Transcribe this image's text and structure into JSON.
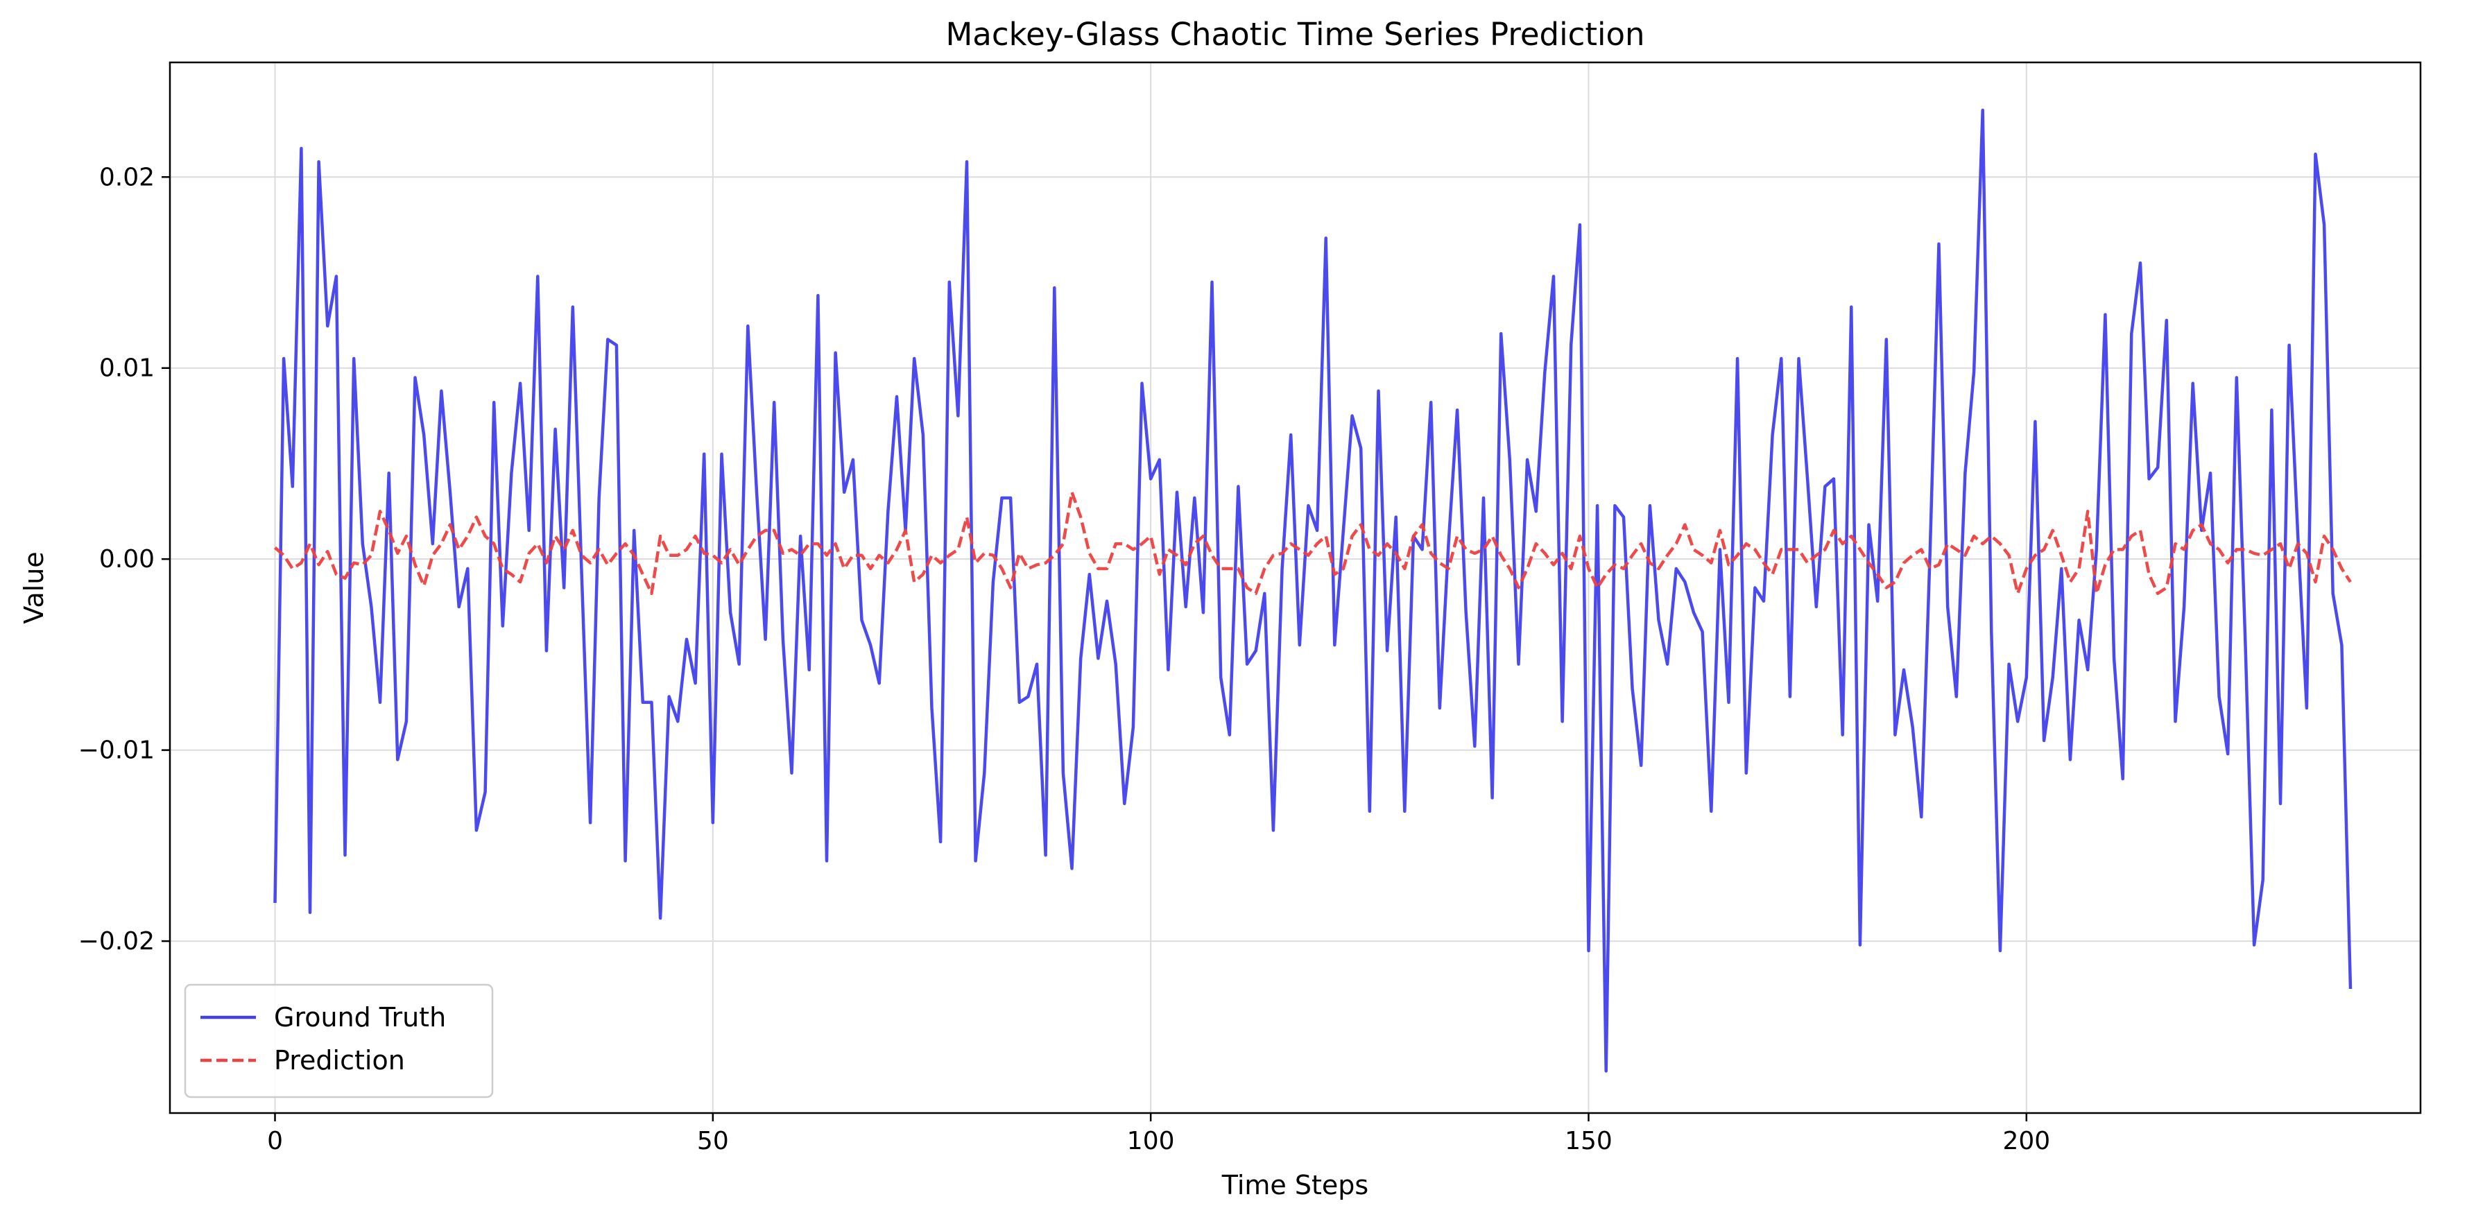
{
  "chart_data": {
    "type": "line",
    "title": "Mackey-Glass Chaotic Time Series Prediction",
    "xlabel": "Time Steps",
    "ylabel": "Value",
    "xlim": [
      -12,
      245
    ],
    "ylim": [
      -0.029,
      0.026
    ],
    "xticks": [
      0,
      50,
      100,
      150,
      200
    ],
    "xtick_labels": [
      "0",
      "50",
      "100",
      "150",
      "200"
    ],
    "yticks": [
      -0.02,
      -0.01,
      0.0,
      0.01,
      0.02
    ],
    "ytick_labels": [
      "−0.02",
      "−0.01",
      "0.00",
      "0.01",
      "0.02"
    ],
    "grid": true,
    "legend_position": "lower-left",
    "series": [
      {
        "name": "Ground Truth",
        "color": "#4040ee",
        "style": "solid",
        "values": [
          -0.018,
          0.0105,
          0.0038,
          0.0215,
          -0.0185,
          0.0208,
          0.0122,
          0.0148,
          -0.0155,
          0.0105,
          0.0008,
          -0.0025,
          -0.0075,
          0.0045,
          -0.0105,
          -0.0085,
          0.0095,
          0.0065,
          0.0008,
          0.0088,
          0.0035,
          -0.0025,
          -0.0005,
          -0.0142,
          -0.0122,
          0.0082,
          -0.0035,
          0.0045,
          0.0092,
          0.0015,
          0.0148,
          -0.0048,
          0.0068,
          -0.0015,
          0.0132,
          -0.0005,
          -0.0138,
          0.0032,
          0.0115,
          0.0112,
          -0.0158,
          0.0015,
          -0.0075,
          -0.0075,
          -0.0188,
          -0.0072,
          -0.0085,
          -0.0042,
          -0.0065,
          0.0055,
          -0.0138,
          0.0055,
          -0.0028,
          -0.0055,
          0.0122,
          0.0035,
          -0.0042,
          0.0082,
          -0.0042,
          -0.0112,
          0.0012,
          -0.0058,
          0.0138,
          -0.0158,
          0.0108,
          0.0035,
          0.0052,
          -0.0032,
          -0.0045,
          -0.0065,
          0.0025,
          0.0085,
          0.0015,
          0.0105,
          0.0065,
          -0.0078,
          -0.0148,
          0.0145,
          0.0075,
          0.0208,
          -0.0158,
          -0.0112,
          -0.0012,
          0.0032,
          0.0032,
          -0.0075,
          -0.0072,
          -0.0055,
          -0.0155,
          0.0142,
          -0.0112,
          -0.0162,
          -0.0052,
          -0.0008,
          -0.0052,
          -0.0022,
          -0.0055,
          -0.0128,
          -0.0088,
          0.0092,
          0.0042,
          0.0052,
          -0.0058,
          0.0035,
          -0.0025,
          0.0032,
          -0.0028,
          0.0145,
          -0.0062,
          -0.0092,
          0.0038,
          -0.0055,
          -0.0048,
          -0.0018,
          -0.0142,
          -0.0005,
          0.0065,
          -0.0045,
          0.0028,
          0.0015,
          0.0168,
          -0.0045,
          0.0015,
          0.0075,
          0.0058,
          -0.0132,
          0.0088,
          -0.0048,
          0.0022,
          -0.0132,
          0.0012,
          0.0005,
          0.0082,
          -0.0078,
          0.0008,
          0.0078,
          -0.0028,
          -0.0098,
          0.0032,
          -0.0125,
          0.0118,
          0.0052,
          -0.0055,
          0.0052,
          0.0025,
          0.0098,
          0.0148,
          -0.0085,
          0.0112,
          0.0175,
          -0.0205,
          0.0028,
          -0.0268,
          0.0028,
          0.0022,
          -0.0068,
          -0.0108,
          0.0028,
          -0.0032,
          -0.0055,
          -0.0005,
          -0.0012,
          -0.0028,
          -0.0038,
          -0.0132,
          0.0005,
          -0.0075,
          0.0105,
          -0.0112,
          -0.0015,
          -0.0022,
          0.0065,
          0.0105,
          -0.0072,
          0.0105,
          0.0042,
          -0.0025,
          0.0038,
          0.0042,
          -0.0092,
          0.0132,
          -0.0202,
          0.0018,
          -0.0022,
          0.0115,
          -0.0092,
          -0.0058,
          -0.0088,
          -0.0135,
          0.0005,
          0.0165,
          -0.0025,
          -0.0072,
          0.0045,
          0.0098,
          0.0235,
          -0.0038,
          -0.0205,
          -0.0055,
          -0.0085,
          -0.0062,
          0.0072,
          -0.0095,
          -0.0062,
          -0.0005,
          -0.0105,
          -0.0032,
          -0.0058,
          0.0005,
          0.0128,
          -0.0052,
          -0.0115,
          0.0118,
          0.0155,
          0.0042,
          0.0048,
          0.0125,
          -0.0085,
          -0.0025,
          0.0092,
          0.0015,
          0.0045,
          -0.0072,
          -0.0102,
          0.0095,
          -0.0045,
          -0.0202,
          -0.0168,
          0.0078,
          -0.0128,
          0.0112,
          0.0012,
          -0.0078,
          0.0212,
          0.0175,
          -0.0018,
          -0.0045,
          -0.0225
        ]
      },
      {
        "name": "Prediction",
        "color": "#ee4040",
        "style": "dashed",
        "values": [
          0.0006,
          0.0002,
          -0.0005,
          -0.0002,
          0.0008,
          -0.0003,
          0.0004,
          -0.0008,
          -0.001,
          -0.0002,
          -0.0003,
          0.0002,
          0.0025,
          0.0015,
          0.0003,
          0.0012,
          -0.0003,
          -0.0014,
          0.0002,
          0.0008,
          0.0018,
          0.0005,
          0.0012,
          0.0022,
          0.0012,
          0.0008,
          -0.0005,
          -0.0008,
          -0.0012,
          0.0003,
          0.0008,
          -0.0002,
          0.0012,
          0.0005,
          0.0015,
          0.0002,
          -0.0002,
          0.0005,
          -0.0003,
          0.0003,
          0.0008,
          0.0002,
          -0.0008,
          -0.0018,
          0.0012,
          0.0002,
          0.0002,
          0.0005,
          0.0012,
          0.0003,
          0.0002,
          -0.0002,
          0.0005,
          -0.0003,
          0.0005,
          0.0012,
          0.0015,
          0.0015,
          0.0003,
          0.0005,
          0.0002,
          0.0008,
          0.0008,
          0.0002,
          0.0008,
          -0.0005,
          0.0002,
          0.0002,
          -0.0005,
          0.0002,
          -0.0002,
          0.0005,
          0.0015,
          -0.0012,
          -0.0008,
          0.0002,
          -0.0002,
          0.0002,
          0.0005,
          0.0022,
          -0.0002,
          0.0003,
          0.0002,
          -0.0005,
          -0.0015,
          0.0003,
          -0.0005,
          -0.0003,
          -0.0002,
          0.0002,
          0.0008,
          0.0035,
          0.0022,
          0.0003,
          -0.0005,
          -0.0005,
          0.0008,
          0.0008,
          0.0005,
          0.0008,
          0.0012,
          -0.0008,
          0.0005,
          0.0002,
          -0.0003,
          0.0008,
          0.0012,
          0.0002,
          -0.0005,
          -0.0005,
          -0.0005,
          -0.0015,
          -0.0018,
          -0.0005,
          0.0002,
          0.0003,
          0.0008,
          0.0005,
          0.0002,
          0.0008,
          0.0012,
          -0.0008,
          -0.0005,
          0.0012,
          0.0018,
          0.0005,
          0.0002,
          0.0008,
          0.0003,
          -0.0005,
          0.0012,
          0.0018,
          0.0003,
          -0.0002,
          -0.0005,
          0.0012,
          0.0005,
          0.0003,
          0.0005,
          0.0012,
          0.0002,
          -0.0005,
          -0.0015,
          -0.0005,
          0.0008,
          0.0003,
          -0.0003,
          0.0003,
          -0.0005,
          0.0012,
          -0.0005,
          -0.0015,
          -0.0008,
          -0.0003,
          -0.0005,
          0.0002,
          0.0008,
          -0.0002,
          -0.0005,
          0.0002,
          0.0008,
          0.0018,
          0.0005,
          0.0002,
          -0.0002,
          0.0015,
          -0.0003,
          0.0002,
          0.0008,
          0.0005,
          -0.0002,
          -0.0008,
          0.0005,
          0.0005,
          0.0005,
          -0.0002,
          0.0002,
          0.0005,
          0.0015,
          0.0008,
          0.0012,
          0.0005,
          -0.0002,
          -0.0008,
          -0.0015,
          -0.0012,
          -0.0002,
          0.0002,
          0.0005,
          -0.0005,
          -0.0003,
          0.0008,
          0.0005,
          0.0002,
          0.0012,
          0.0008,
          0.0012,
          0.0008,
          0.0002,
          -0.0018,
          -0.0005,
          0.0002,
          0.0005,
          0.0015,
          0.0002,
          -0.0012,
          -0.0005,
          0.0025,
          -0.0018,
          -0.0003,
          0.0005,
          0.0005,
          0.0012,
          0.0015,
          -0.0008,
          -0.0018,
          -0.0015,
          0.0008,
          0.0005,
          0.0015,
          0.0018,
          0.0008,
          0.0005,
          -0.0002,
          0.0005,
          0.0005,
          0.0003,
          0.0002,
          0.0005,
          0.0008,
          -0.0005,
          0.0008,
          0.0003,
          -0.0012,
          0.0012,
          0.0005,
          -0.0005,
          -0.0012
        ]
      }
    ]
  }
}
